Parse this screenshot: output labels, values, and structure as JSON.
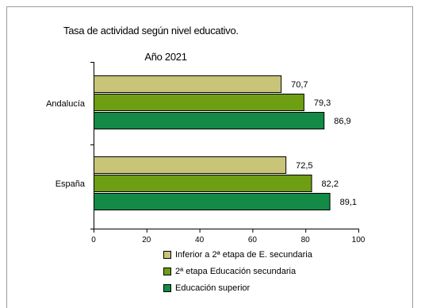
{
  "chart_data": {
    "type": "bar",
    "orientation": "horizontal",
    "title": "Tasa de actividad según nivel educativo.",
    "subtitle": "Año 2021",
    "categories": [
      "Andalucía",
      "España"
    ],
    "series": [
      {
        "name": "Inferior a 2ª etapa de E. secundaria",
        "values": [
          70.7,
          72.5
        ],
        "labels": [
          "70,7",
          "72,5"
        ],
        "color": "#c8c478"
      },
      {
        "name": "2ª etapa Educación secundaria",
        "values": [
          79.3,
          82.2
        ],
        "labels": [
          "79,3",
          "82,2"
        ],
        "color": "#6e9e12"
      },
      {
        "name": "Educación superior",
        "values": [
          86.9,
          89.1
        ],
        "labels": [
          "86,9",
          "89,1"
        ],
        "color": "#138a45"
      }
    ],
    "xlim": [
      0,
      100
    ],
    "xticks": [
      "0",
      "20",
      "40",
      "60",
      "80",
      "100"
    ],
    "xlabel": "",
    "ylabel": "",
    "grid": false,
    "legend_position": "bottom"
  }
}
